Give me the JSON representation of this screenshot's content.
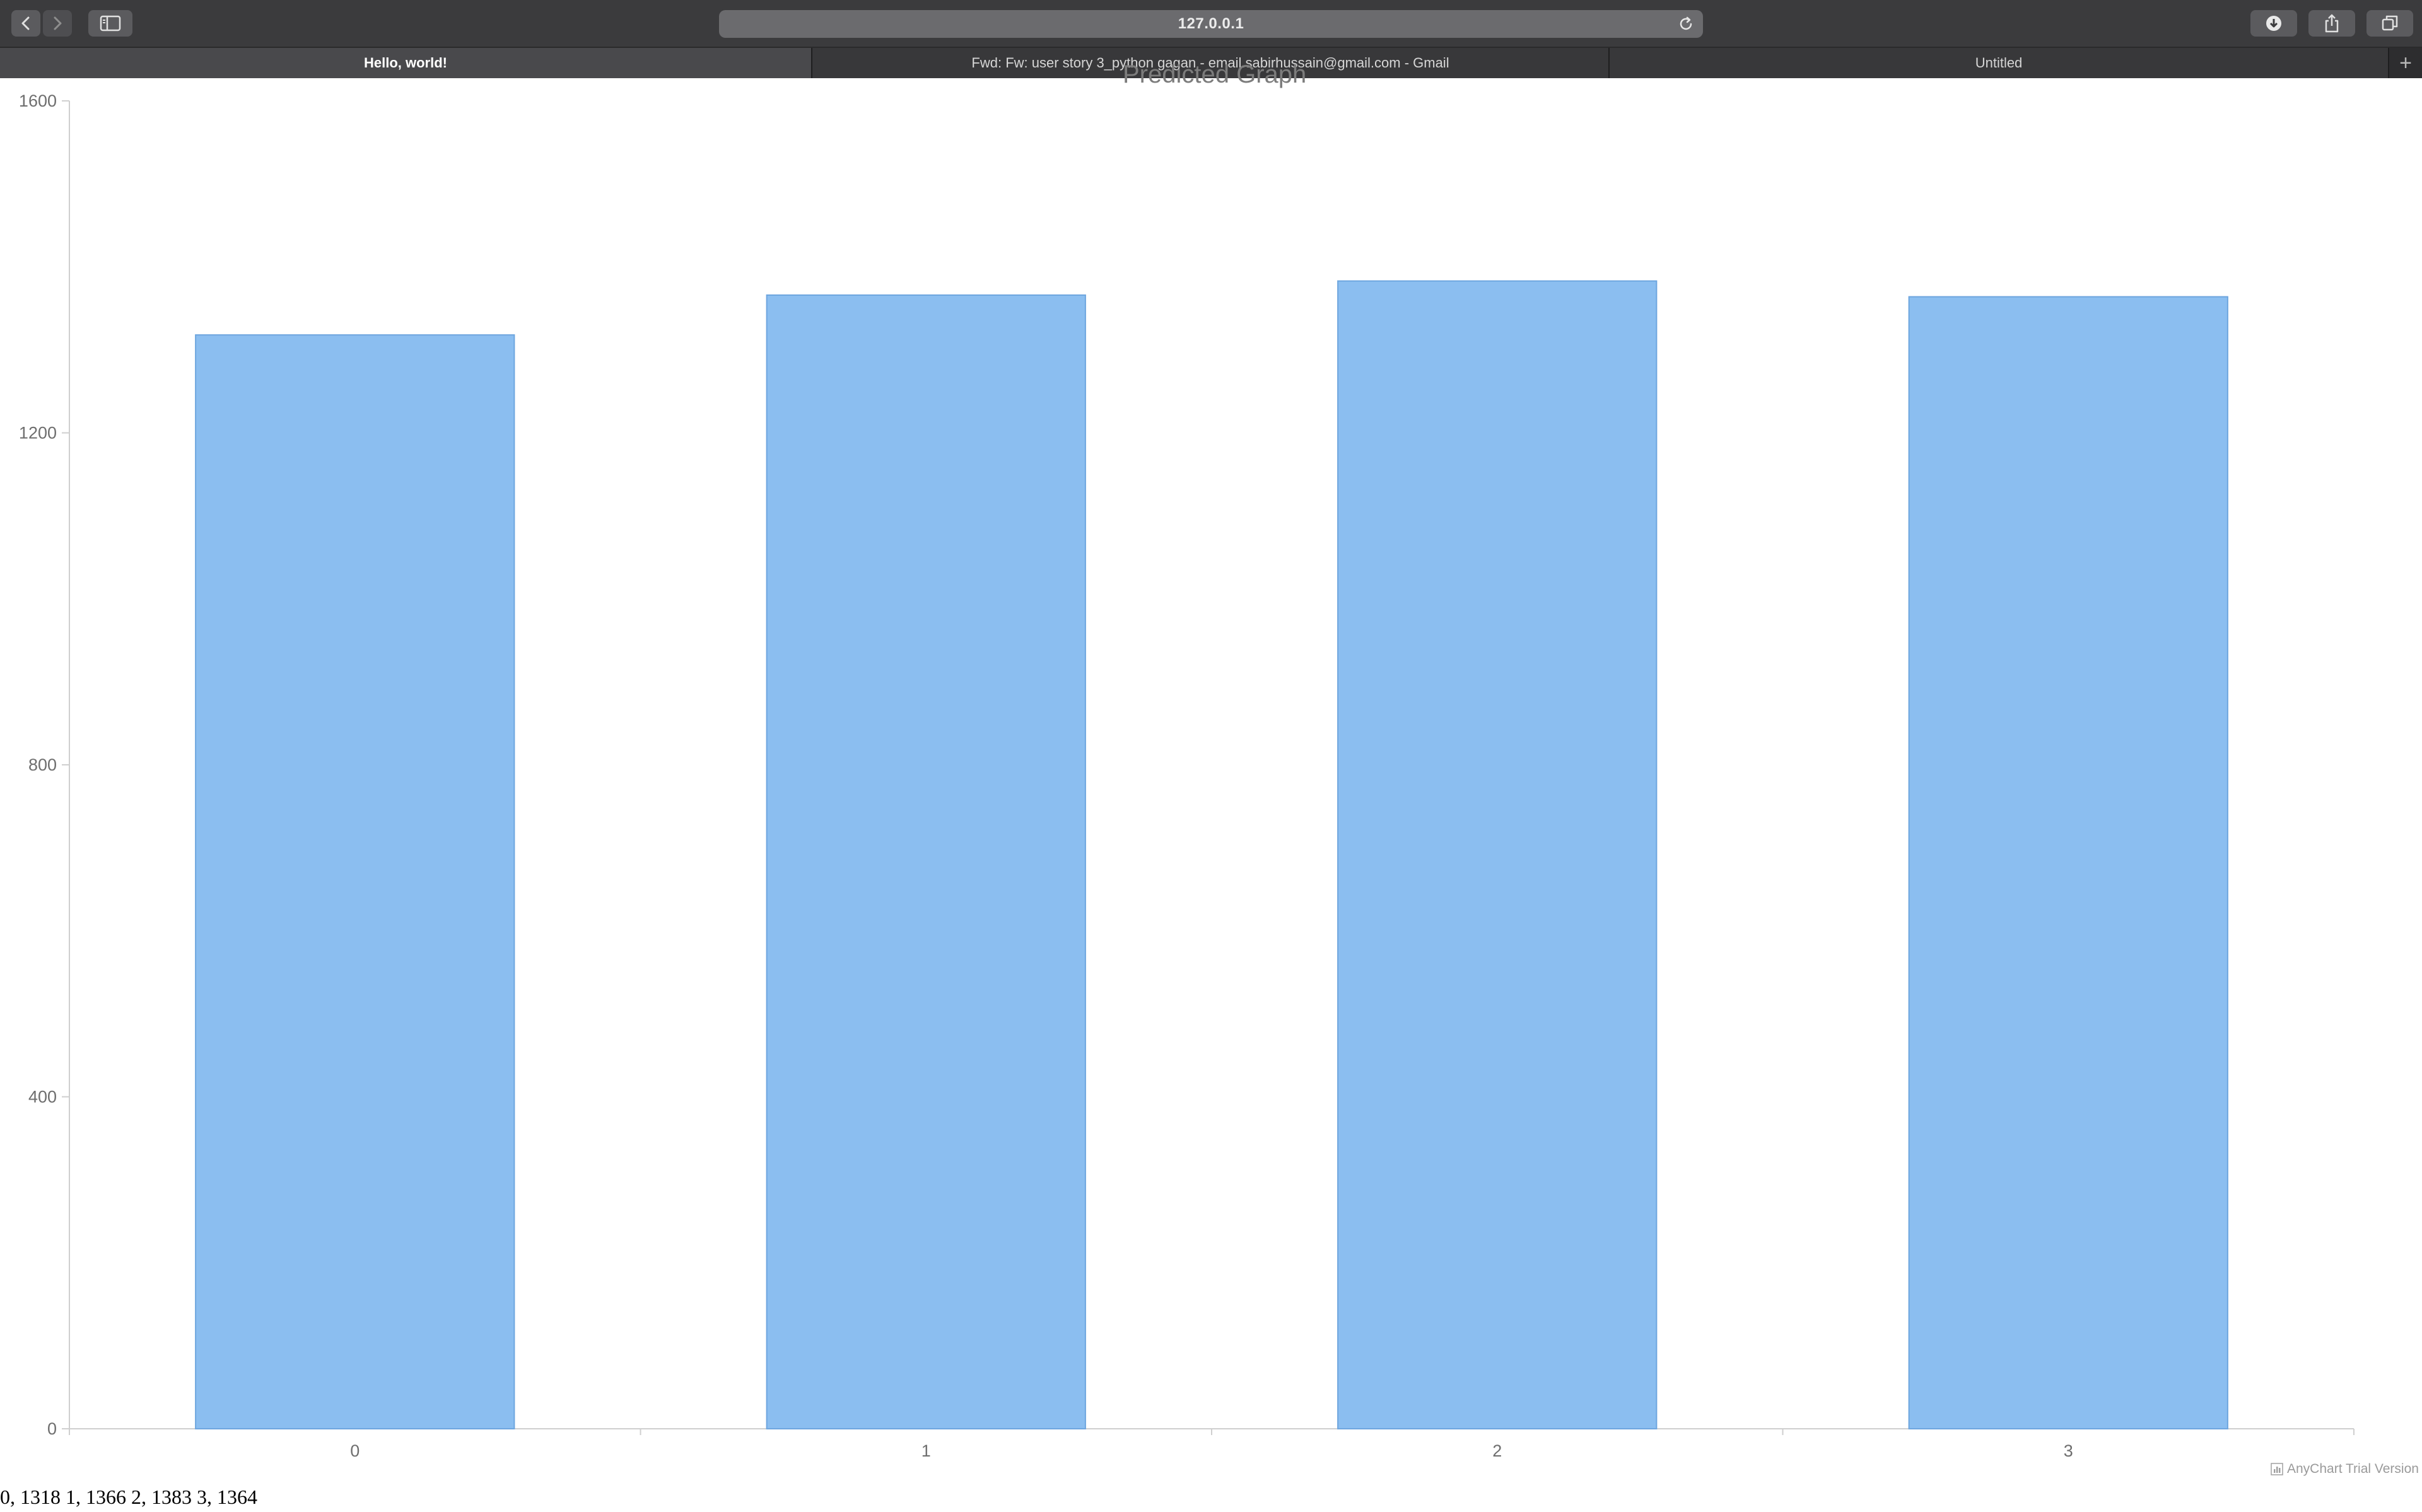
{
  "browser": {
    "address": "127.0.0.1",
    "tabs": [
      {
        "label": "Hello, world!",
        "active": true
      },
      {
        "label": "Fwd: Fw: user story 3_python gagan - email.sabirhussain@gmail.com - Gmail",
        "active": false
      },
      {
        "label": "Untitled",
        "active": false
      }
    ],
    "icons": {
      "back": "chevron-left-icon",
      "forward": "chevron-right-icon",
      "sidebar": "sidebar-icon",
      "reload": "reload-icon",
      "downloads": "download-icon",
      "share": "share-icon",
      "tabs_overview": "tabs-overview-icon",
      "new_tab": "plus-icon"
    }
  },
  "page": {
    "chart_title": "Predicted Graph",
    "credit": "AnyChart Trial Version",
    "output_line": "0, 1318 1, 1366 2, 1383 3, 1364"
  },
  "chart_data": {
    "type": "bar",
    "title": "Predicted Graph",
    "categories": [
      "0",
      "1",
      "2",
      "3"
    ],
    "values": [
      1318,
      1366,
      1383,
      1364
    ],
    "ylim": [
      0,
      1600
    ],
    "yticks": [
      "0",
      "400",
      "800",
      "1200",
      "1600"
    ],
    "xlabel": "",
    "ylabel": "",
    "grid": false,
    "bar_color": "#8bbef0",
    "bar_stroke": "#6ea6df",
    "axis_color": "#cfcfcf"
  }
}
